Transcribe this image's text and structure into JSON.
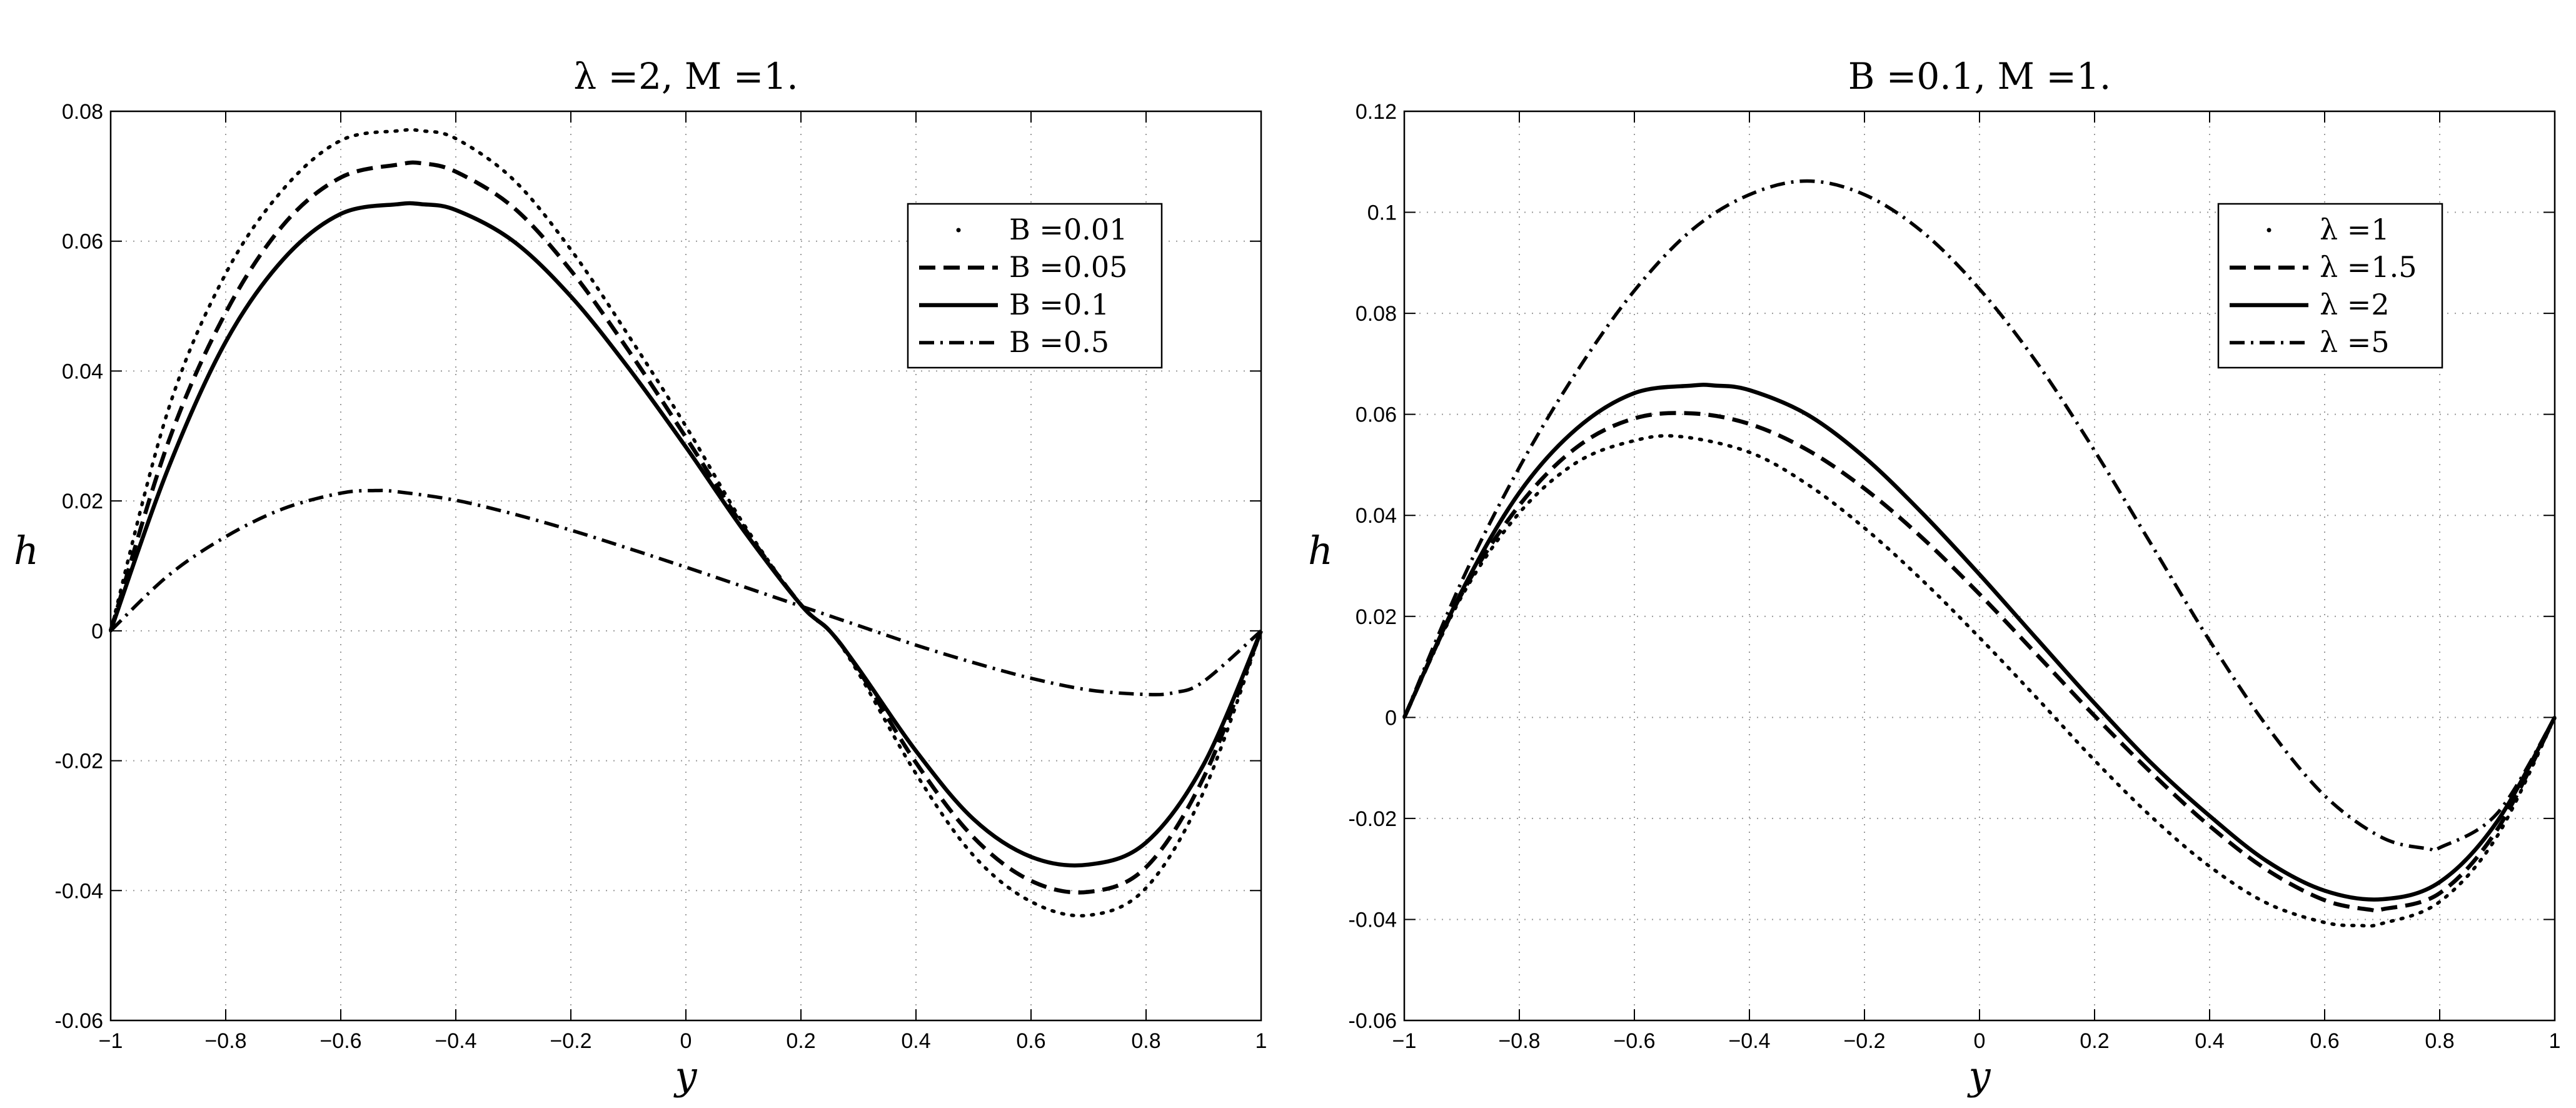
{
  "chart_data": [
    {
      "type": "line",
      "title": "λ =2, M =1.",
      "xlabel": "y",
      "ylabel": "h",
      "xlim": [
        -1,
        1
      ],
      "ylim": [
        -0.06,
        0.08
      ],
      "xticks": [
        -1,
        -0.8,
        -0.6,
        -0.4,
        -0.2,
        0,
        0.2,
        0.4,
        0.6,
        0.8,
        1
      ],
      "xtick_labels": [
        "−1",
        "−0.8",
        "−0.6",
        "−0.4",
        "−0.2",
        "0",
        "0.2",
        "0.4",
        "0.6",
        "0.8",
        "1"
      ],
      "yticks": [
        -0.06,
        -0.04,
        -0.02,
        0,
        0.02,
        0.04,
        0.06,
        0.08
      ],
      "ytick_labels": [
        "-0.06",
        "-0.04",
        "-0.02",
        "0",
        "0.02",
        "0.04",
        "0.06",
        "0.08"
      ],
      "grid": true,
      "legend_position": "top-right",
      "series": [
        {
          "name": "B =0.01",
          "style": "dotted",
          "x": [
            -1,
            -0.9,
            -0.8,
            -0.7,
            -0.6,
            -0.5,
            -0.46,
            -0.4,
            -0.3,
            -0.2,
            -0.1,
            0,
            0.1,
            0.2,
            0.25,
            0.3,
            0.4,
            0.5,
            0.6,
            0.7,
            0.8,
            0.9,
            1
          ],
          "y": [
            0,
            0.034,
            0.055,
            0.068,
            0.0755,
            0.077,
            0.077,
            0.0758,
            0.0695,
            0.0587,
            0.0455,
            0.0315,
            0.0165,
            0.004,
            0,
            -0.0065,
            -0.022,
            -0.0346,
            -0.0417,
            -0.0438,
            -0.0396,
            -0.0248,
            0
          ]
        },
        {
          "name": "B =0.05",
          "style": "dashed",
          "x": [
            -1,
            -0.9,
            -0.8,
            -0.7,
            -0.6,
            -0.5,
            -0.46,
            -0.4,
            -0.3,
            -0.2,
            -0.1,
            0,
            0.1,
            0.2,
            0.25,
            0.3,
            0.4,
            0.5,
            0.6,
            0.7,
            0.8,
            0.9,
            1
          ],
          "y": [
            0,
            0.029,
            0.049,
            0.0625,
            0.0698,
            0.0718,
            0.072,
            0.0707,
            0.0652,
            0.0555,
            0.0432,
            0.0298,
            0.016,
            0.004,
            0,
            -0.006,
            -0.0203,
            -0.0318,
            -0.0385,
            -0.0402,
            -0.0364,
            -0.0226,
            0
          ]
        },
        {
          "name": "B =0.1",
          "style": "solid",
          "x": [
            -1,
            -0.9,
            -0.8,
            -0.7,
            -0.6,
            -0.5,
            -0.46,
            -0.4,
            -0.3,
            -0.2,
            -0.1,
            0,
            0.1,
            0.2,
            0.25,
            0.3,
            0.4,
            0.5,
            0.6,
            0.7,
            0.8,
            0.9,
            1
          ],
          "y": [
            0,
            0.025,
            0.0445,
            0.0572,
            0.0642,
            0.0657,
            0.0657,
            0.0648,
            0.06,
            0.0515,
            0.0405,
            0.0283,
            0.0155,
            0.004,
            0,
            -0.0058,
            -0.0185,
            -0.029,
            -0.0348,
            -0.036,
            -0.0326,
            -0.0206,
            0
          ]
        },
        {
          "name": "B =0.5",
          "style": "dashdot",
          "x": [
            -1,
            -0.9,
            -0.8,
            -0.7,
            -0.6,
            -0.54,
            -0.5,
            -0.4,
            -0.3,
            -0.2,
            -0.1,
            0,
            0.1,
            0.2,
            0.3,
            0.4,
            0.5,
            0.6,
            0.7,
            0.8,
            0.85,
            0.9,
            1
          ],
          "y": [
            0,
            0.0085,
            0.0145,
            0.0188,
            0.0212,
            0.0216,
            0.0214,
            0.0201,
            0.018,
            0.0155,
            0.0127,
            0.0098,
            0.0068,
            0.0038,
            0.0008,
            -0.0022,
            -0.0049,
            -0.0073,
            -0.0091,
            -0.0098,
            -0.0095,
            -0.0078,
            0
          ]
        }
      ]
    },
    {
      "type": "line",
      "title": "B =0.1, M =1.",
      "xlabel": "y",
      "ylabel": "h",
      "xlim": [
        -1,
        1
      ],
      "ylim": [
        -0.06,
        0.12
      ],
      "xticks": [
        -1,
        -0.8,
        -0.6,
        -0.4,
        -0.2,
        0,
        0.2,
        0.4,
        0.6,
        0.8,
        1
      ],
      "xtick_labels": [
        "−1",
        "−0.8",
        "−0.6",
        "−0.4",
        "−0.2",
        "0",
        "0.2",
        "0.4",
        "0.6",
        "0.8",
        "1"
      ],
      "yticks": [
        -0.06,
        -0.04,
        -0.02,
        0,
        0.02,
        0.04,
        0.06,
        0.08,
        0.1,
        0.12
      ],
      "ytick_labels": [
        "-0.06",
        "-0.04",
        "-0.02",
        "0",
        "0.02",
        "0.04",
        "0.06",
        "0.08",
        "0.1",
        "0.12"
      ],
      "grid": true,
      "legend_position": "top-right",
      "series": [
        {
          "name": "λ =1",
          "style": "dotted",
          "x": [
            -1,
            -0.9,
            -0.8,
            -0.7,
            -0.6,
            -0.52,
            -0.4,
            -0.3,
            -0.2,
            -0.1,
            0,
            0.1,
            0.2,
            0.3,
            0.4,
            0.5,
            0.6,
            0.66,
            0.7,
            0.8,
            0.9,
            1
          ],
          "y": [
            0,
            0.024,
            0.0405,
            0.0505,
            0.0548,
            0.0556,
            0.0525,
            0.0462,
            0.0375,
            0.0272,
            0.0158,
            0.0038,
            -0.0085,
            -0.0198,
            -0.0295,
            -0.0368,
            -0.0406,
            -0.0412,
            -0.0408,
            -0.0365,
            -0.0235,
            0
          ]
        },
        {
          "name": "λ =1.5",
          "style": "dashed",
          "x": [
            -1,
            -0.9,
            -0.8,
            -0.7,
            -0.6,
            -0.5,
            -0.4,
            -0.3,
            -0.2,
            -0.1,
            0,
            0.1,
            0.2,
            0.3,
            0.4,
            0.5,
            0.6,
            0.68,
            0.7,
            0.8,
            0.9,
            1
          ],
          "y": [
            0,
            0.0245,
            0.042,
            0.0535,
            0.0592,
            0.0602,
            0.0581,
            0.053,
            0.0453,
            0.0356,
            0.0244,
            0.0124,
            0.0003,
            -0.0111,
            -0.0215,
            -0.0302,
            -0.0362,
            -0.0381,
            -0.038,
            -0.0348,
            -0.0222,
            0
          ]
        },
        {
          "name": "λ =2",
          "style": "solid",
          "x": [
            -1,
            -0.9,
            -0.8,
            -0.7,
            -0.6,
            -0.5,
            -0.46,
            -0.4,
            -0.3,
            -0.2,
            -0.1,
            0,
            0.1,
            0.2,
            0.3,
            0.4,
            0.5,
            0.6,
            0.7,
            0.8,
            0.9,
            1
          ],
          "y": [
            0,
            0.025,
            0.0445,
            0.0572,
            0.0642,
            0.0657,
            0.0657,
            0.0648,
            0.06,
            0.0515,
            0.0405,
            0.0283,
            0.0155,
            0.0028,
            -0.0092,
            -0.0195,
            -0.0285,
            -0.0343,
            -0.036,
            -0.0326,
            -0.0206,
            0
          ]
        },
        {
          "name": "λ =5",
          "style": "dashdot",
          "x": [
            -1,
            -0.9,
            -0.8,
            -0.7,
            -0.6,
            -0.5,
            -0.4,
            -0.3,
            -0.2,
            -0.1,
            0,
            0.1,
            0.2,
            0.3,
            0.4,
            0.5,
            0.6,
            0.7,
            0.78,
            0.8,
            0.9,
            1
          ],
          "y": [
            0,
            0.027,
            0.0495,
            0.0685,
            0.0845,
            0.0965,
            0.1035,
            0.1062,
            0.1035,
            0.0962,
            0.0848,
            0.0702,
            0.0528,
            0.034,
            0.0152,
            -0.0018,
            -0.0155,
            -0.0238,
            -0.026,
            -0.0258,
            -0.019,
            0
          ]
        }
      ]
    }
  ]
}
